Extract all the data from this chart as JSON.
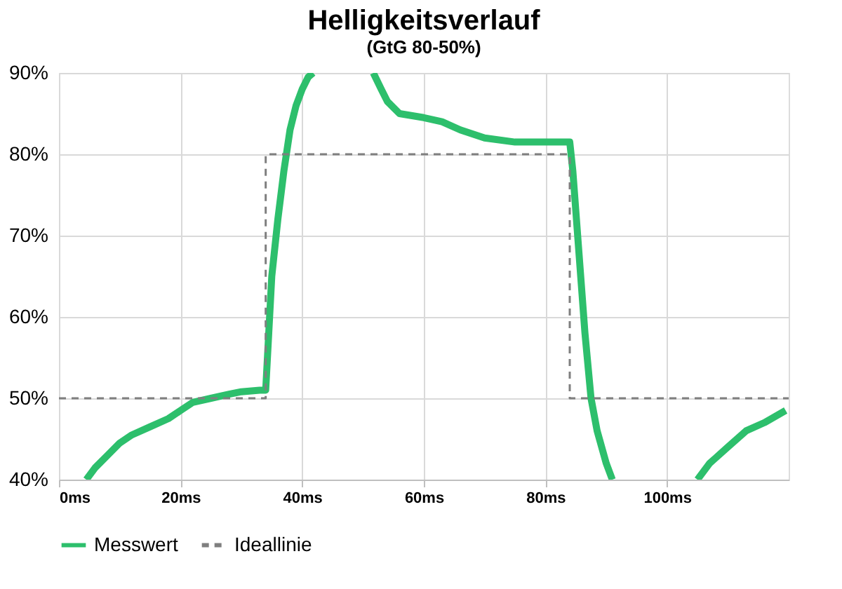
{
  "chart_data": {
    "type": "line",
    "title": "Helligkeitsverlauf",
    "subtitle": "(GtG 80-50%)",
    "xlim": [
      0,
      120
    ],
    "ylim": [
      40,
      90
    ],
    "xticks": [
      {
        "value": 0,
        "label": "0ms"
      },
      {
        "value": 20,
        "label": "20ms"
      },
      {
        "value": 40,
        "label": "40ms"
      },
      {
        "value": 60,
        "label": "60ms"
      },
      {
        "value": 80,
        "label": "80ms"
      },
      {
        "value": 100,
        "label": "100ms"
      }
    ],
    "yticks": [
      {
        "value": 40,
        "label": "40%"
      },
      {
        "value": 50,
        "label": "50%"
      },
      {
        "value": 60,
        "label": "60%"
      },
      {
        "value": 70,
        "label": "70%"
      },
      {
        "value": 80,
        "label": "80%"
      },
      {
        "value": 90,
        "label": "90%"
      }
    ],
    "grid": true,
    "legend": "bottom",
    "series": [
      {
        "name": "Messwert",
        "color": "#2dbf6c",
        "line_style": "solid",
        "x": [
          4.5,
          6,
          8,
          10,
          12,
          15,
          18,
          20,
          22,
          25,
          28,
          30,
          33,
          34,
          34.5,
          35,
          36,
          37,
          38,
          39,
          40,
          41,
          41.8,
          47,
          51.7,
          53,
          54,
          56,
          60,
          63,
          66,
          70,
          75,
          80,
          84,
          84.5,
          85.5,
          86.5,
          87.5,
          88.5,
          90,
          91,
          98,
          105,
          107,
          110,
          113,
          116,
          119.5
        ],
        "values": [
          40,
          41.5,
          43,
          44.5,
          45.5,
          46.5,
          47.5,
          48.5,
          49.5,
          50,
          50.5,
          50.8,
          51,
          51,
          58,
          65,
          72,
          78,
          83,
          86,
          88,
          89.5,
          90,
          null,
          90,
          88,
          86.5,
          85,
          84.5,
          84,
          83,
          82,
          81.5,
          81.5,
          81.5,
          78,
          68,
          58,
          50,
          46,
          42,
          40,
          null,
          40,
          42,
          44,
          46,
          47,
          48.5
        ]
      },
      {
        "name": "Ideallinie",
        "color": "#7f7f7f",
        "line_style": "dashed",
        "x": [
          0,
          34,
          34,
          84,
          84,
          120
        ],
        "values": [
          50,
          50,
          80,
          80,
          50,
          50
        ]
      }
    ]
  }
}
